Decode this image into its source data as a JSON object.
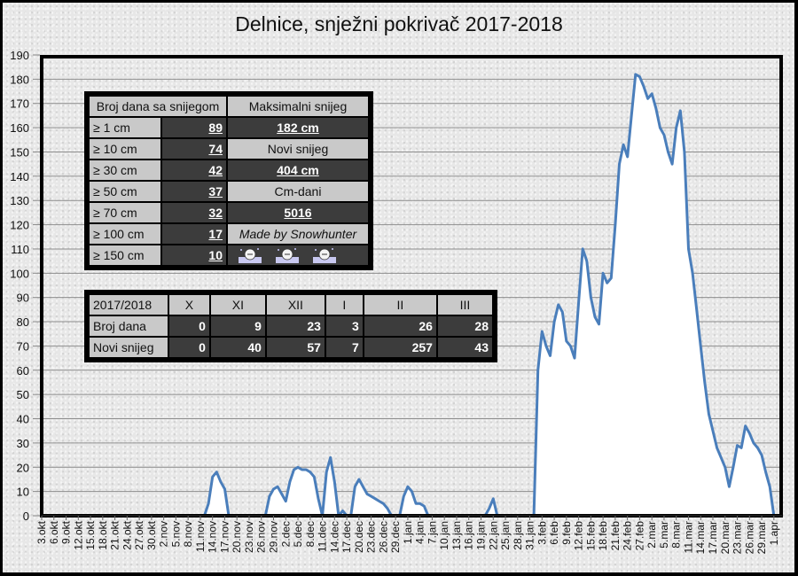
{
  "title": "Delnice, snježni pokrivač 2017-2018",
  "colors": {
    "line": "#4a7ebb",
    "fill": "#ffffff",
    "grid": "#8c8c8c",
    "frame": "#000000",
    "table_light": "#c9c9c9",
    "table_dark": "#3c3c3c"
  },
  "stats_table": {
    "header_left": "Broj dana sa snijegom",
    "header_right": "Maksimalni snijeg",
    "rows": [
      {
        "label": "≥ 1 cm",
        "value": "89",
        "right": "182 cm",
        "right_style": "dark"
      },
      {
        "label": "≥ 10 cm",
        "value": "74",
        "right": "Novi snijeg",
        "right_style": "light"
      },
      {
        "label": "≥ 30 cm",
        "value": "42",
        "right": "404 cm",
        "right_style": "dark"
      },
      {
        "label": "≥ 50 cm",
        "value": "37",
        "right": "Cm-dani",
        "right_style": "light"
      },
      {
        "label": "≥ 70 cm",
        "value": "32",
        "right": "5016",
        "right_style": "dark"
      },
      {
        "label": "≥ 100 cm",
        "value": "17",
        "right": "Made by Snowhunter",
        "right_style": "light-italic"
      },
      {
        "label": "≥ 150 cm",
        "value": "10",
        "right": "",
        "right_style": "icons"
      }
    ],
    "icons": [
      "snowman-icon",
      "snowman-icon",
      "snowman-icon"
    ]
  },
  "monthly_table": {
    "header": [
      "2017/2018",
      "X",
      "XI",
      "XII",
      "I",
      "II",
      "III"
    ],
    "rows": [
      {
        "label": "Broj dana",
        "values": [
          "0",
          "9",
          "23",
          "3",
          "26",
          "28"
        ]
      },
      {
        "label": "Novi snijeg",
        "values": [
          "0",
          "40",
          "57",
          "7",
          "257",
          "43"
        ]
      }
    ]
  },
  "chart_data": {
    "type": "area",
    "title": "Delnice, snježni pokrivač 2017-2018",
    "xlabel": "",
    "ylabel": "",
    "ylim": [
      0,
      190
    ],
    "yticks": [
      0,
      10,
      20,
      30,
      40,
      50,
      60,
      70,
      80,
      90,
      100,
      110,
      120,
      130,
      140,
      150,
      160,
      170,
      180,
      190
    ],
    "grid": true,
    "legend": "none",
    "x_start": "3.okt",
    "x_end": "1.apr",
    "xtick_labels": [
      "3.okt",
      "6.okt",
      "9.okt",
      "12.okt",
      "15.okt",
      "18.okt",
      "21.okt",
      "24.okt",
      "27.okt",
      "30.okt",
      "2.nov",
      "5.nov",
      "8.nov",
      "11.nov",
      "14.nov",
      "17.nov",
      "20.nov",
      "23.nov",
      "26.nov",
      "29.nov",
      "2.dec",
      "5.dec",
      "8.dec",
      "11.dec",
      "14.dec",
      "17.dec",
      "20.dec",
      "23.dec",
      "26.dec",
      "29.dec",
      "1.jan",
      "4.jan",
      "7.jan",
      "10.jan",
      "13.jan",
      "16.jan",
      "19.jan",
      "22.jan",
      "25.jan",
      "28.jan",
      "31.jan",
      "3.feb",
      "6.feb",
      "9.feb",
      "12.feb",
      "15.feb",
      "18.feb",
      "21.feb",
      "24.feb",
      "27.feb",
      "2.mar",
      "5.mar",
      "8.mar",
      "11.mar",
      "14.mar",
      "17.mar",
      "20.mar",
      "23.mar",
      "26.mar",
      "29.mar",
      "1.apr"
    ],
    "series": [
      {
        "name": "Snježni pokrivač (cm)",
        "points": [
          [
            0,
            0
          ],
          [
            40,
            0
          ],
          [
            41,
            5
          ],
          [
            42,
            16
          ],
          [
            43,
            18
          ],
          [
            44,
            14
          ],
          [
            45,
            11
          ],
          [
            46,
            0
          ],
          [
            55,
            0
          ],
          [
            56,
            8
          ],
          [
            57,
            11
          ],
          [
            58,
            12
          ],
          [
            59,
            9
          ],
          [
            60,
            6
          ],
          [
            61,
            14
          ],
          [
            62,
            19
          ],
          [
            63,
            20
          ],
          [
            64,
            19
          ],
          [
            65,
            19
          ],
          [
            66,
            18
          ],
          [
            67,
            16
          ],
          [
            68,
            7
          ],
          [
            69,
            0
          ],
          [
            70,
            18
          ],
          [
            71,
            24
          ],
          [
            72,
            14
          ],
          [
            73,
            0
          ],
          [
            74,
            2
          ],
          [
            75,
            0
          ],
          [
            76,
            0
          ],
          [
            77,
            12
          ],
          [
            78,
            15
          ],
          [
            79,
            12
          ],
          [
            80,
            9
          ],
          [
            81,
            8
          ],
          [
            82,
            7
          ],
          [
            83,
            6
          ],
          [
            84,
            5
          ],
          [
            85,
            3
          ],
          [
            86,
            0
          ],
          [
            88,
            0
          ],
          [
            89,
            8
          ],
          [
            90,
            12
          ],
          [
            91,
            10
          ],
          [
            92,
            5
          ],
          [
            93,
            5
          ],
          [
            94,
            4
          ],
          [
            95,
            0
          ],
          [
            109,
            0
          ],
          [
            110,
            3
          ],
          [
            111,
            7
          ],
          [
            112,
            0
          ],
          [
            121,
            0
          ],
          [
            122,
            60
          ],
          [
            123,
            76
          ],
          [
            124,
            70
          ],
          [
            125,
            66
          ],
          [
            126,
            80
          ],
          [
            127,
            87
          ],
          [
            128,
            84
          ],
          [
            129,
            72
          ],
          [
            130,
            70
          ],
          [
            131,
            65
          ],
          [
            132,
            88
          ],
          [
            133,
            110
          ],
          [
            134,
            105
          ],
          [
            135,
            90
          ],
          [
            136,
            82
          ],
          [
            137,
            79
          ],
          [
            138,
            100
          ],
          [
            139,
            96
          ],
          [
            140,
            98
          ],
          [
            141,
            120
          ],
          [
            142,
            145
          ],
          [
            143,
            153
          ],
          [
            144,
            148
          ],
          [
            145,
            165
          ],
          [
            146,
            182
          ],
          [
            147,
            181
          ],
          [
            148,
            177
          ],
          [
            149,
            172
          ],
          [
            150,
            174
          ],
          [
            151,
            168
          ],
          [
            152,
            160
          ],
          [
            153,
            157
          ],
          [
            154,
            150
          ],
          [
            155,
            145
          ],
          [
            156,
            160
          ],
          [
            157,
            167
          ],
          [
            158,
            150
          ],
          [
            159,
            110
          ],
          [
            160,
            100
          ],
          [
            161,
            85
          ],
          [
            162,
            70
          ],
          [
            163,
            55
          ],
          [
            164,
            42
          ],
          [
            165,
            35
          ],
          [
            166,
            28
          ],
          [
            167,
            24
          ],
          [
            168,
            20
          ],
          [
            169,
            12
          ],
          [
            170,
            20
          ],
          [
            171,
            29
          ],
          [
            172,
            28
          ],
          [
            173,
            37
          ],
          [
            174,
            34
          ],
          [
            175,
            30
          ],
          [
            176,
            28
          ],
          [
            177,
            25
          ],
          [
            178,
            18
          ],
          [
            179,
            12
          ],
          [
            180,
            0
          ],
          [
            182,
            0
          ]
        ]
      }
    ]
  }
}
